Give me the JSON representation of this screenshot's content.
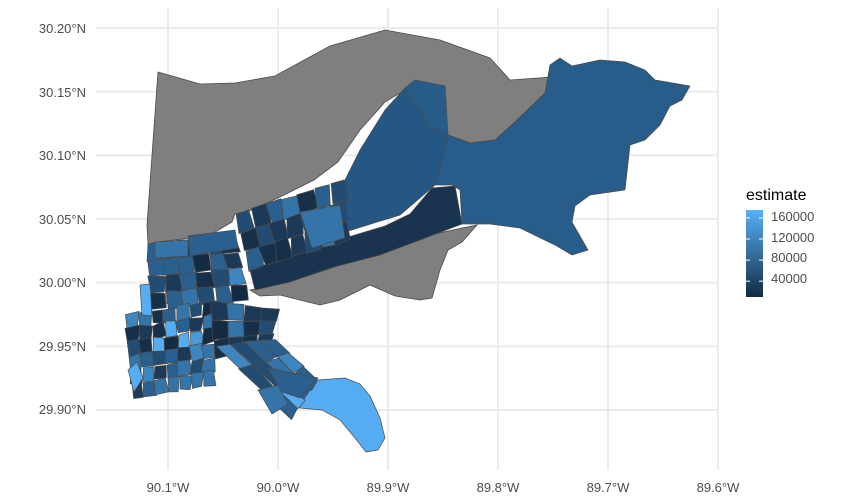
{
  "chart_data": {
    "type": "choropleth",
    "x_ticks": [
      "90.1°W",
      "90.0°W",
      "89.9°W",
      "89.8°W",
      "89.7°W",
      "89.6°W"
    ],
    "y_ticks": [
      "29.90°N",
      "29.95°N",
      "30.00°N",
      "30.05°N",
      "30.10°N",
      "30.15°N",
      "30.20°N"
    ],
    "xlim": [
      -90.15,
      -89.6
    ],
    "ylim": [
      29.86,
      30.21
    ],
    "legend": {
      "title": "estimate",
      "labels": [
        "160000",
        "120000",
        "80000",
        "40000"
      ],
      "values": [
        160000,
        120000,
        80000,
        40000
      ],
      "range": [
        10000,
        175000
      ],
      "position": "right"
    },
    "colors": {
      "low": "#132B43",
      "high": "#56B1F7",
      "missing": "#7f7f7f",
      "border": "#4a4a4a",
      "grid": "#ebebeb"
    },
    "grid": true
  }
}
